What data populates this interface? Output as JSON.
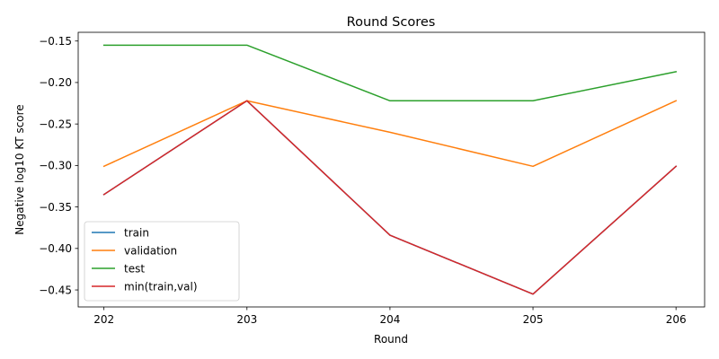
{
  "chart_data": {
    "type": "line",
    "title": "Round Scores",
    "xlabel": "Round",
    "ylabel": "Negative log10 KT score",
    "x": [
      202,
      203,
      204,
      205,
      206
    ],
    "x_tick_labels": [
      "202",
      "203",
      "204",
      "205",
      "206"
    ],
    "y_ticks": [
      -0.45,
      -0.4,
      -0.35,
      -0.3,
      -0.25,
      -0.2,
      -0.15
    ],
    "y_tick_labels": [
      "−0.45",
      "−0.40",
      "−0.35",
      "−0.30",
      "−0.25",
      "−0.20",
      "−0.15"
    ],
    "xlim": [
      201.82,
      206.2
    ],
    "ylim": [
      -0.4705,
      -0.1395
    ],
    "grid": false,
    "legend_position": "lower-left",
    "series": [
      {
        "name": "train",
        "color": "#1f77b4",
        "values": [
          -0.335,
          -0.222,
          -0.384,
          -0.455,
          -0.301
        ]
      },
      {
        "name": "validation",
        "color": "#ff7f0e",
        "values": [
          -0.301,
          -0.222,
          -0.26,
          -0.301,
          -0.222
        ]
      },
      {
        "name": "test",
        "color": "#2ca02c",
        "values": [
          -0.155,
          -0.155,
          -0.222,
          -0.222,
          -0.187
        ]
      },
      {
        "name": "min(train,val)",
        "color": "#d62728",
        "values": [
          -0.335,
          -0.222,
          -0.384,
          -0.455,
          -0.301
        ]
      }
    ]
  }
}
